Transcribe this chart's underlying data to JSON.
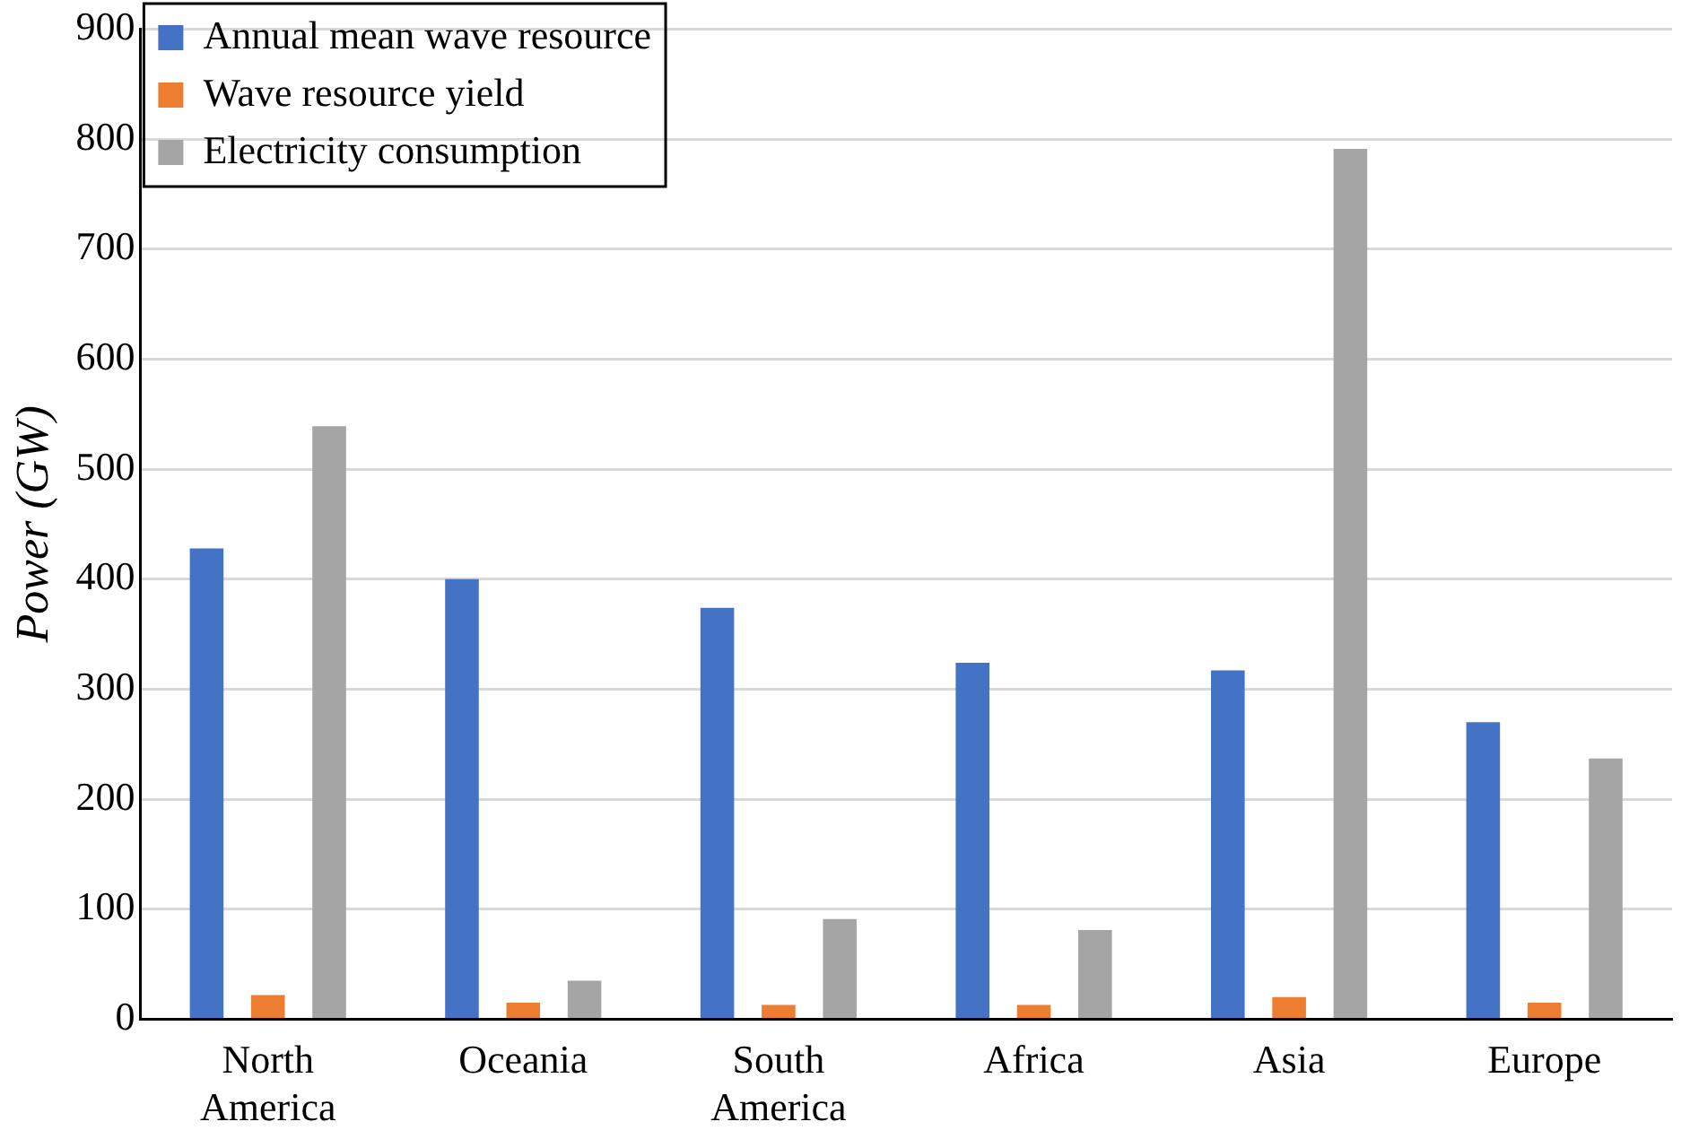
{
  "chart_data": {
    "type": "bar",
    "ylabel": "Power (GW)",
    "categories": [
      "North America",
      "Oceania",
      "South America",
      "Africa",
      "Asia",
      "Europe"
    ],
    "series": [
      {
        "name": "Annual mean wave resource",
        "color": "#4472c4",
        "values": [
          428,
          400,
          374,
          324,
          317,
          270
        ]
      },
      {
        "name": "Wave resource yield",
        "color": "#ed7d31",
        "values": [
          22,
          15,
          13,
          13,
          20,
          15
        ]
      },
      {
        "name": "Electricity consumption",
        "color": "#a5a5a5",
        "values": [
          539,
          35,
          91,
          81,
          791,
          237
        ]
      }
    ],
    "ylim": [
      0,
      900
    ],
    "yticks": [
      0,
      100,
      200,
      300,
      400,
      500,
      600,
      700,
      800,
      900
    ],
    "grid": "y",
    "legend": "top left"
  }
}
